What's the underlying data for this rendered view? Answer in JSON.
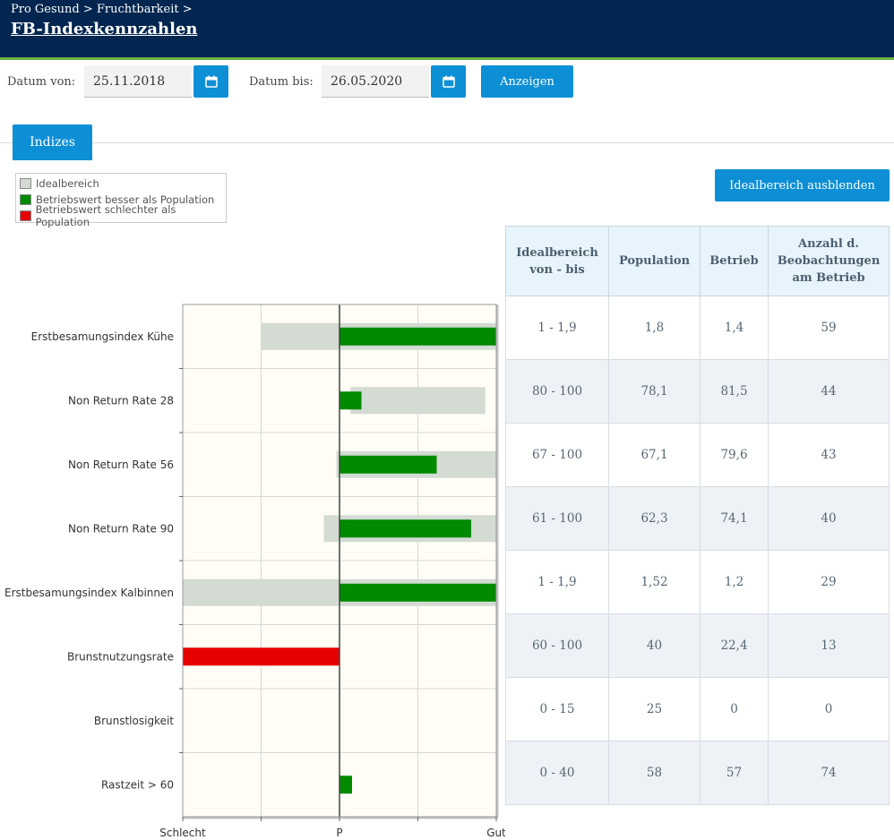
{
  "header": {
    "breadcrumb": "Pro Gesund > Fruchtbarkeit >",
    "title": "FB-Indexkennzahlen"
  },
  "filters": {
    "date_from_label": "Datum von:",
    "date_from_value": "25.11.2018",
    "date_to_label": "Datum bis:",
    "date_to_value": "26.05.2020",
    "show_button": "Anzeigen",
    "calendar_icon": "calendar-icon"
  },
  "tabs": [
    {
      "label": "Indizes",
      "active": true
    }
  ],
  "toggle_button": "Idealbereich ausblenden",
  "legend": [
    {
      "label": "Idealbereich",
      "color": "#d3dbd2"
    },
    {
      "label": "Betriebswert besser als Population",
      "color": "#008a00"
    },
    {
      "label": "Betriebswert schlechter als Population",
      "color": "#e60000"
    }
  ],
  "chart_data": {
    "type": "bar",
    "orientation": "horizontal",
    "x_ticks": [
      "Schlecht",
      "P",
      "Gut"
    ],
    "xlim": [
      -1,
      1
    ],
    "grid": true,
    "categories": [
      "Erstbesamungsindex Kühe",
      "Non Return Rate 28",
      "Non Return Rate 56",
      "Non Return Rate 90",
      "Erstbesamungsindex Kalbinnen",
      "Brunstnutzungsrate",
      "Brunstlosigkeit",
      "Rastzeit > 60"
    ],
    "ideal_ranges": [
      [
        -0.5,
        1.0
      ],
      [
        0.07,
        0.93
      ],
      [
        -0.02,
        1.0
      ],
      [
        -0.1,
        1.0
      ],
      [
        -1.0,
        1.0
      ],
      null,
      null,
      null
    ],
    "series": [
      {
        "name": "Betriebswert besser als Population",
        "values": [
          1.0,
          0.14,
          0.62,
          0.84,
          1.0,
          0,
          0,
          0.08
        ],
        "color": "#008a00"
      },
      {
        "name": "Betriebswert schlechter als Population",
        "values": [
          0,
          0,
          0,
          0,
          0,
          -1.0,
          0,
          0
        ],
        "color": "#e60000"
      }
    ]
  },
  "table": {
    "headers": [
      "Idealbereich von - bis",
      "Population",
      "Betrieb",
      "Anzahl d. Beobachtungen am Betrieb"
    ],
    "rows": [
      [
        "1 - 1,9",
        "1,8",
        "1,4",
        "59"
      ],
      [
        "80 - 100",
        "78,1",
        "81,5",
        "44"
      ],
      [
        "67 - 100",
        "67,1",
        "79,6",
        "43"
      ],
      [
        "61 - 100",
        "62,3",
        "74,1",
        "40"
      ],
      [
        "1 - 1,9",
        "1,52",
        "1,2",
        "29"
      ],
      [
        "60 - 100",
        "40",
        "22,4",
        "13"
      ],
      [
        "0 - 15",
        "25",
        "0",
        "0"
      ],
      [
        "0 - 40",
        "58",
        "57",
        "74"
      ]
    ]
  }
}
